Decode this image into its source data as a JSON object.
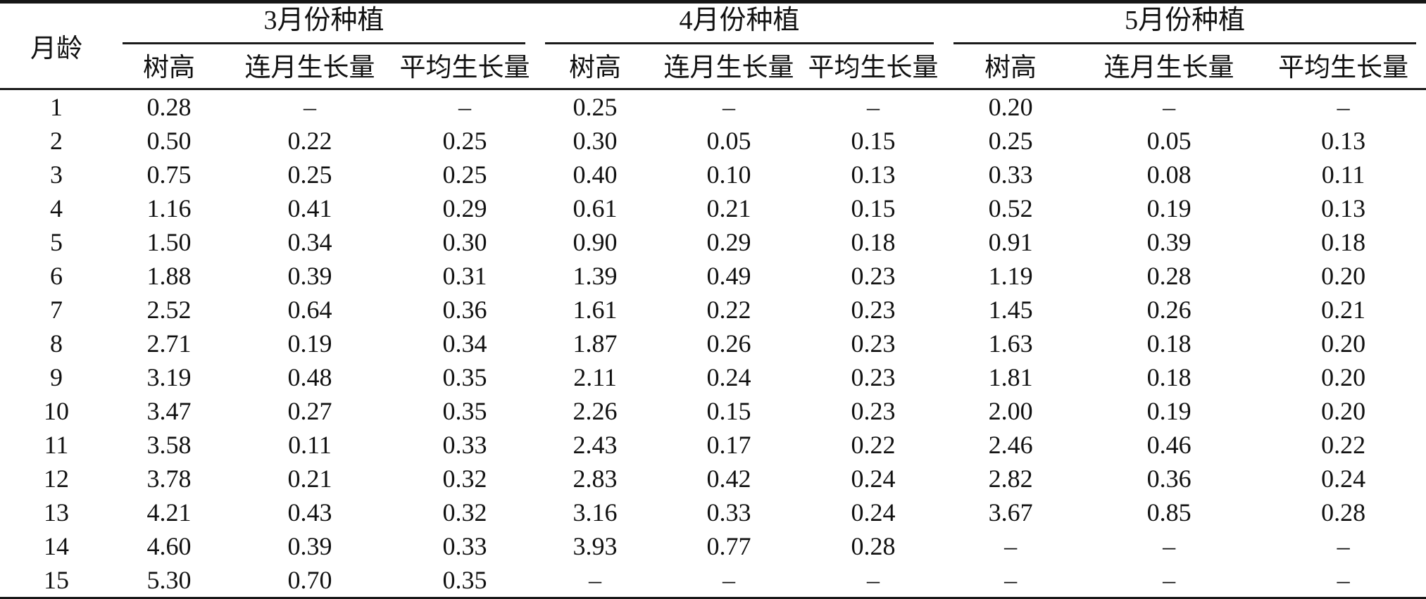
{
  "table": {
    "corner_header": "月龄",
    "groups": [
      {
        "label": "3月份种植",
        "columns": [
          "树高",
          "连月生长量",
          "平均生长量"
        ]
      },
      {
        "label": "4月份种植",
        "columns": [
          "树高",
          "连月生长量",
          "平均生长量"
        ]
      },
      {
        "label": "5月份种植",
        "columns": [
          "树高",
          "连月生长量",
          "平均生长量"
        ]
      }
    ],
    "rows": [
      {
        "age": "1",
        "march": [
          "0.28",
          "–",
          "–"
        ],
        "april": [
          "0.25",
          "–",
          "–"
        ],
        "may": [
          "0.20",
          "–",
          "–"
        ]
      },
      {
        "age": "2",
        "march": [
          "0.50",
          "0.22",
          "0.25"
        ],
        "april": [
          "0.30",
          "0.05",
          "0.15"
        ],
        "may": [
          "0.25",
          "0.05",
          "0.13"
        ]
      },
      {
        "age": "3",
        "march": [
          "0.75",
          "0.25",
          "0.25"
        ],
        "april": [
          "0.40",
          "0.10",
          "0.13"
        ],
        "may": [
          "0.33",
          "0.08",
          "0.11"
        ]
      },
      {
        "age": "4",
        "march": [
          "1.16",
          "0.41",
          "0.29"
        ],
        "april": [
          "0.61",
          "0.21",
          "0.15"
        ],
        "may": [
          "0.52",
          "0.19",
          "0.13"
        ]
      },
      {
        "age": "5",
        "march": [
          "1.50",
          "0.34",
          "0.30"
        ],
        "april": [
          "0.90",
          "0.29",
          "0.18"
        ],
        "may": [
          "0.91",
          "0.39",
          "0.18"
        ]
      },
      {
        "age": "6",
        "march": [
          "1.88",
          "0.39",
          "0.31"
        ],
        "april": [
          "1.39",
          "0.49",
          "0.23"
        ],
        "may": [
          "1.19",
          "0.28",
          "0.20"
        ]
      },
      {
        "age": "7",
        "march": [
          "2.52",
          "0.64",
          "0.36"
        ],
        "april": [
          "1.61",
          "0.22",
          "0.23"
        ],
        "may": [
          "1.45",
          "0.26",
          "0.21"
        ]
      },
      {
        "age": "8",
        "march": [
          "2.71",
          "0.19",
          "0.34"
        ],
        "april": [
          "1.87",
          "0.26",
          "0.23"
        ],
        "may": [
          "1.63",
          "0.18",
          "0.20"
        ]
      },
      {
        "age": "9",
        "march": [
          "3.19",
          "0.48",
          "0.35"
        ],
        "april": [
          "2.11",
          "0.24",
          "0.23"
        ],
        "may": [
          "1.81",
          "0.18",
          "0.20"
        ]
      },
      {
        "age": "10",
        "march": [
          "3.47",
          "0.27",
          "0.35"
        ],
        "april": [
          "2.26",
          "0.15",
          "0.23"
        ],
        "may": [
          "2.00",
          "0.19",
          "0.20"
        ]
      },
      {
        "age": "11",
        "march": [
          "3.58",
          "0.11",
          "0.33"
        ],
        "april": [
          "2.43",
          "0.17",
          "0.22"
        ],
        "may": [
          "2.46",
          "0.46",
          "0.22"
        ]
      },
      {
        "age": "12",
        "march": [
          "3.78",
          "0.21",
          "0.32"
        ],
        "april": [
          "2.83",
          "0.42",
          "0.24"
        ],
        "may": [
          "2.82",
          "0.36",
          "0.24"
        ]
      },
      {
        "age": "13",
        "march": [
          "4.21",
          "0.43",
          "0.32"
        ],
        "april": [
          "3.16",
          "0.33",
          "0.24"
        ],
        "may": [
          "3.67",
          "0.85",
          "0.28"
        ]
      },
      {
        "age": "14",
        "march": [
          "4.60",
          "0.39",
          "0.33"
        ],
        "april": [
          "3.93",
          "0.77",
          "0.28"
        ],
        "may": [
          "–",
          "–",
          "–"
        ]
      },
      {
        "age": "15",
        "march": [
          "5.30",
          "0.70",
          "0.35"
        ],
        "april": [
          "–",
          "–",
          "–"
        ],
        "may": [
          "–",
          "–",
          "–"
        ]
      }
    ]
  },
  "chart_data": {
    "type": "table",
    "categories_label": "月龄",
    "categories": [
      1,
      2,
      3,
      4,
      5,
      6,
      7,
      8,
      9,
      10,
      11,
      12,
      13,
      14,
      15
    ],
    "series": [
      {
        "name": "3月份种植-树高",
        "values": [
          0.28,
          0.5,
          0.75,
          1.16,
          1.5,
          1.88,
          2.52,
          2.71,
          3.19,
          3.47,
          3.58,
          3.78,
          4.21,
          4.6,
          5.3
        ]
      },
      {
        "name": "3月份种植-连月生长量",
        "values": [
          null,
          0.22,
          0.25,
          0.41,
          0.34,
          0.39,
          0.64,
          0.19,
          0.48,
          0.27,
          0.11,
          0.21,
          0.43,
          0.39,
          0.7
        ]
      },
      {
        "name": "3月份种植-平均生长量",
        "values": [
          null,
          0.25,
          0.25,
          0.29,
          0.3,
          0.31,
          0.36,
          0.34,
          0.35,
          0.35,
          0.33,
          0.32,
          0.32,
          0.33,
          0.35
        ]
      },
      {
        "name": "4月份种植-树高",
        "values": [
          0.25,
          0.3,
          0.4,
          0.61,
          0.9,
          1.39,
          1.61,
          1.87,
          2.11,
          2.26,
          2.43,
          2.83,
          3.16,
          3.93,
          null
        ]
      },
      {
        "name": "4月份种植-连月生长量",
        "values": [
          null,
          0.05,
          0.1,
          0.21,
          0.29,
          0.49,
          0.22,
          0.26,
          0.24,
          0.15,
          0.17,
          0.42,
          0.33,
          0.77,
          null
        ]
      },
      {
        "name": "4月份种植-平均生长量",
        "values": [
          null,
          0.15,
          0.13,
          0.15,
          0.18,
          0.23,
          0.23,
          0.23,
          0.23,
          0.23,
          0.22,
          0.24,
          0.24,
          0.28,
          null
        ]
      },
      {
        "name": "5月份种植-树高",
        "values": [
          0.2,
          0.25,
          0.33,
          0.52,
          0.91,
          1.19,
          1.45,
          1.63,
          1.81,
          2.0,
          2.46,
          2.82,
          3.67,
          null,
          null
        ]
      },
      {
        "name": "5月份种植-连月生长量",
        "values": [
          null,
          0.05,
          0.08,
          0.19,
          0.39,
          0.28,
          0.26,
          0.18,
          0.18,
          0.19,
          0.46,
          0.36,
          0.85,
          null,
          null
        ]
      },
      {
        "name": "5月份种植-平均生长量",
        "values": [
          null,
          0.13,
          0.11,
          0.13,
          0.18,
          0.2,
          0.21,
          0.2,
          0.2,
          0.2,
          0.22,
          0.24,
          0.28,
          null,
          null
        ]
      }
    ]
  }
}
